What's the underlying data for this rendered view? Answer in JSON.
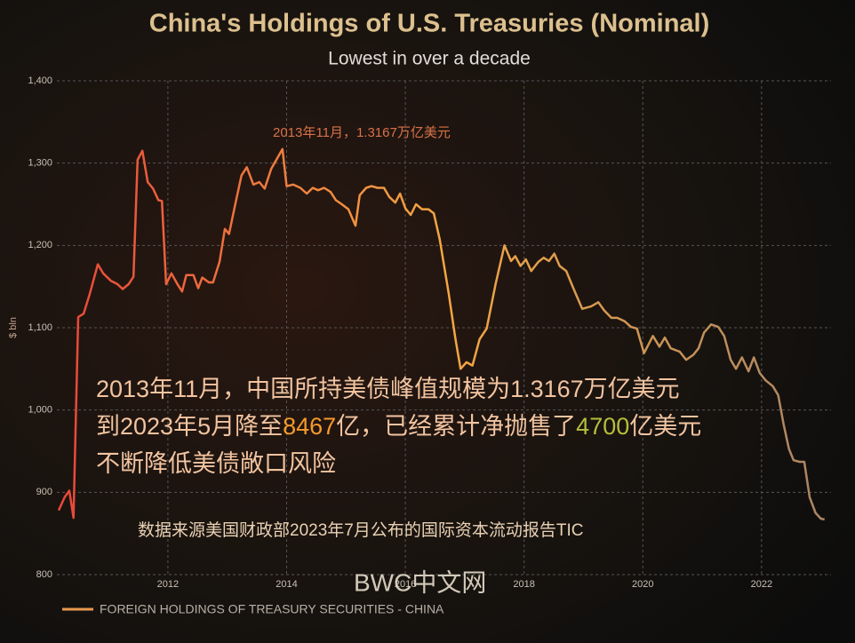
{
  "chart_data": {
    "type": "line",
    "title": "China's Holdings of U.S. Treasuries (Nominal)",
    "subtitle": "Lowest in over a decade",
    "y_label": "$ bln",
    "annotation": "2013年11月，1.3167万亿美元",
    "overlay_lines": [
      [
        "2013年11月，中国所持美债峰值规模为1.3167万亿美元"
      ],
      [
        "到2023年5月降至",
        "8467",
        "亿，已经累计净抛售了",
        "4700",
        "亿美元"
      ],
      [
        "不断降低美债敞口风险"
      ]
    ],
    "source": "数据来源美国财政部2023年7月公布的国际资本流动报告TIC",
    "watermark": "BWC中文网",
    "grid": true,
    "xlim": [
      2010.13,
      2023.17
    ],
    "ylim": [
      800,
      1400
    ],
    "xticks": [
      2012,
      2014,
      2016,
      2018,
      2020,
      2022
    ],
    "yticks": [
      800,
      900,
      {
        "value": 1000,
        "label": "1,000"
      },
      {
        "value": 1100,
        "label": "1,100"
      },
      {
        "value": 1200,
        "label": "1,200"
      },
      {
        "value": 1300,
        "label": "1,300"
      },
      {
        "value": 1400,
        "label": "1,400"
      }
    ],
    "series": [
      {
        "name": "FOREIGN HOLDINGS OF TREASURY SECURITIES - CHINA",
        "color": "#e8994f",
        "gradient": [
          "#e8463a",
          "#f4a742",
          "#a88466"
        ],
        "x": [
          2010.16,
          2010.26,
          2010.34,
          2010.41,
          2010.49,
          2010.58,
          2010.68,
          2010.82,
          2010.91,
          2011.04,
          2011.15,
          2011.24,
          2011.34,
          2011.42,
          2011.49,
          2011.57,
          2011.66,
          2011.75,
          2011.84,
          2011.9,
          2011.97,
          2012.06,
          2012.16,
          2012.24,
          2012.31,
          2012.43,
          2012.51,
          2012.58,
          2012.69,
          2012.76,
          2012.87,
          2012.96,
          2013.03,
          2013.14,
          2013.24,
          2013.33,
          2013.44,
          2013.54,
          2013.63,
          2013.74,
          2013.93,
          2014.0,
          2014.11,
          2014.23,
          2014.34,
          2014.44,
          2014.53,
          2014.63,
          2014.74,
          2014.83,
          2014.93,
          2015.04,
          2015.16,
          2015.23,
          2015.34,
          2015.43,
          2015.53,
          2015.64,
          2015.73,
          2015.83,
          2015.91,
          2016.0,
          2016.09,
          2016.18,
          2016.28,
          2016.39,
          2016.48,
          2016.58,
          2016.73,
          2016.84,
          2016.93,
          2017.03,
          2017.13,
          2017.25,
          2017.37,
          2017.52,
          2017.67,
          2017.78,
          2017.85,
          2017.94,
          2018.03,
          2018.12,
          2018.24,
          2018.33,
          2018.42,
          2018.51,
          2018.6,
          2018.71,
          2018.83,
          2018.98,
          2019.13,
          2019.25,
          2019.35,
          2019.47,
          2019.57,
          2019.69,
          2019.8,
          2019.9,
          2020.02,
          2020.17,
          2020.28,
          2020.37,
          2020.47,
          2020.62,
          2020.73,
          2020.85,
          2020.94,
          2021.03,
          2021.15,
          2021.27,
          2021.37,
          2021.48,
          2021.57,
          2021.67,
          2021.78,
          2021.87,
          2021.97,
          2022.07,
          2022.19,
          2022.28,
          2022.37,
          2022.46,
          2022.54,
          2022.64,
          2022.72,
          2022.81,
          2022.91,
          2023.0,
          2023.06
        ],
        "values": [
          878,
          894,
          902,
          869,
          1113,
          1117,
          1140,
          1177,
          1166,
          1157,
          1153,
          1147,
          1153,
          1162,
          1304,
          1315,
          1277,
          1269,
          1255,
          1254,
          1153,
          1166,
          1153,
          1144,
          1164,
          1164,
          1148,
          1161,
          1155,
          1155,
          1180,
          1220,
          1214,
          1252,
          1285,
          1295,
          1274,
          1277,
          1269,
          1293,
          1317,
          1272,
          1274,
          1270,
          1263,
          1270,
          1267,
          1270,
          1265,
          1255,
          1250,
          1244,
          1224,
          1261,
          1270,
          1272,
          1270,
          1270,
          1259,
          1252,
          1263,
          1245,
          1237,
          1250,
          1244,
          1244,
          1239,
          1207,
          1142,
          1088,
          1050,
          1058,
          1054,
          1086,
          1099,
          1153,
          1200,
          1181,
          1187,
          1175,
          1183,
          1169,
          1180,
          1185,
          1181,
          1190,
          1175,
          1169,
          1148,
          1123,
          1126,
          1131,
          1121,
          1112,
          1112,
          1108,
          1101,
          1099,
          1069,
          1090,
          1077,
          1088,
          1075,
          1071,
          1061,
          1067,
          1075,
          1094,
          1104,
          1101,
          1090,
          1061,
          1050,
          1064,
          1047,
          1064,
          1045,
          1036,
          1029,
          1018,
          983,
          953,
          939,
          937,
          937,
          894,
          875,
          868,
          867
        ]
      }
    ]
  }
}
